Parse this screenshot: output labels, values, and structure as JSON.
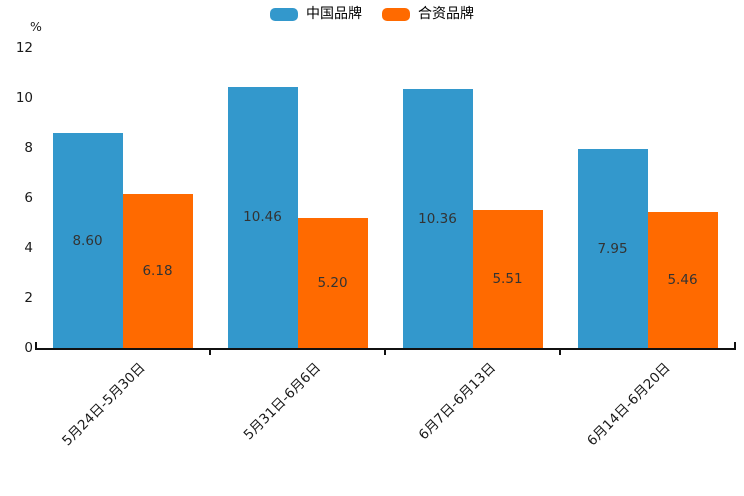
{
  "chart_data": {
    "type": "bar",
    "title": "",
    "xlabel": "",
    "ylabel": "%",
    "categories": [
      "5月24日-5月30日",
      "5月31日-6月6日",
      "6月7日-6月13日",
      "6月14日-6月20日"
    ],
    "series": [
      {
        "name": "中国品牌",
        "color": "#3398cc",
        "values": [
          8.6,
          10.46,
          10.36,
          7.95
        ]
      },
      {
        "name": "合资品牌",
        "color": "#ff6a00",
        "values": [
          6.18,
          5.2,
          5.51,
          5.46
        ]
      }
    ],
    "value_labels": [
      [
        "8.60",
        "10.46",
        "10.36",
        "7.95"
      ],
      [
        "6.18",
        "5.20",
        "5.51",
        "5.46"
      ]
    ],
    "ylim": [
      0,
      12
    ],
    "yticks": [
      0,
      2,
      4,
      6,
      8,
      10,
      12
    ],
    "grid": false,
    "legend_position": "top-center",
    "axis_color": "#111111",
    "text_color": "#1a1a1a",
    "value_label_color": "#333333",
    "background_color": "#ffffff"
  }
}
